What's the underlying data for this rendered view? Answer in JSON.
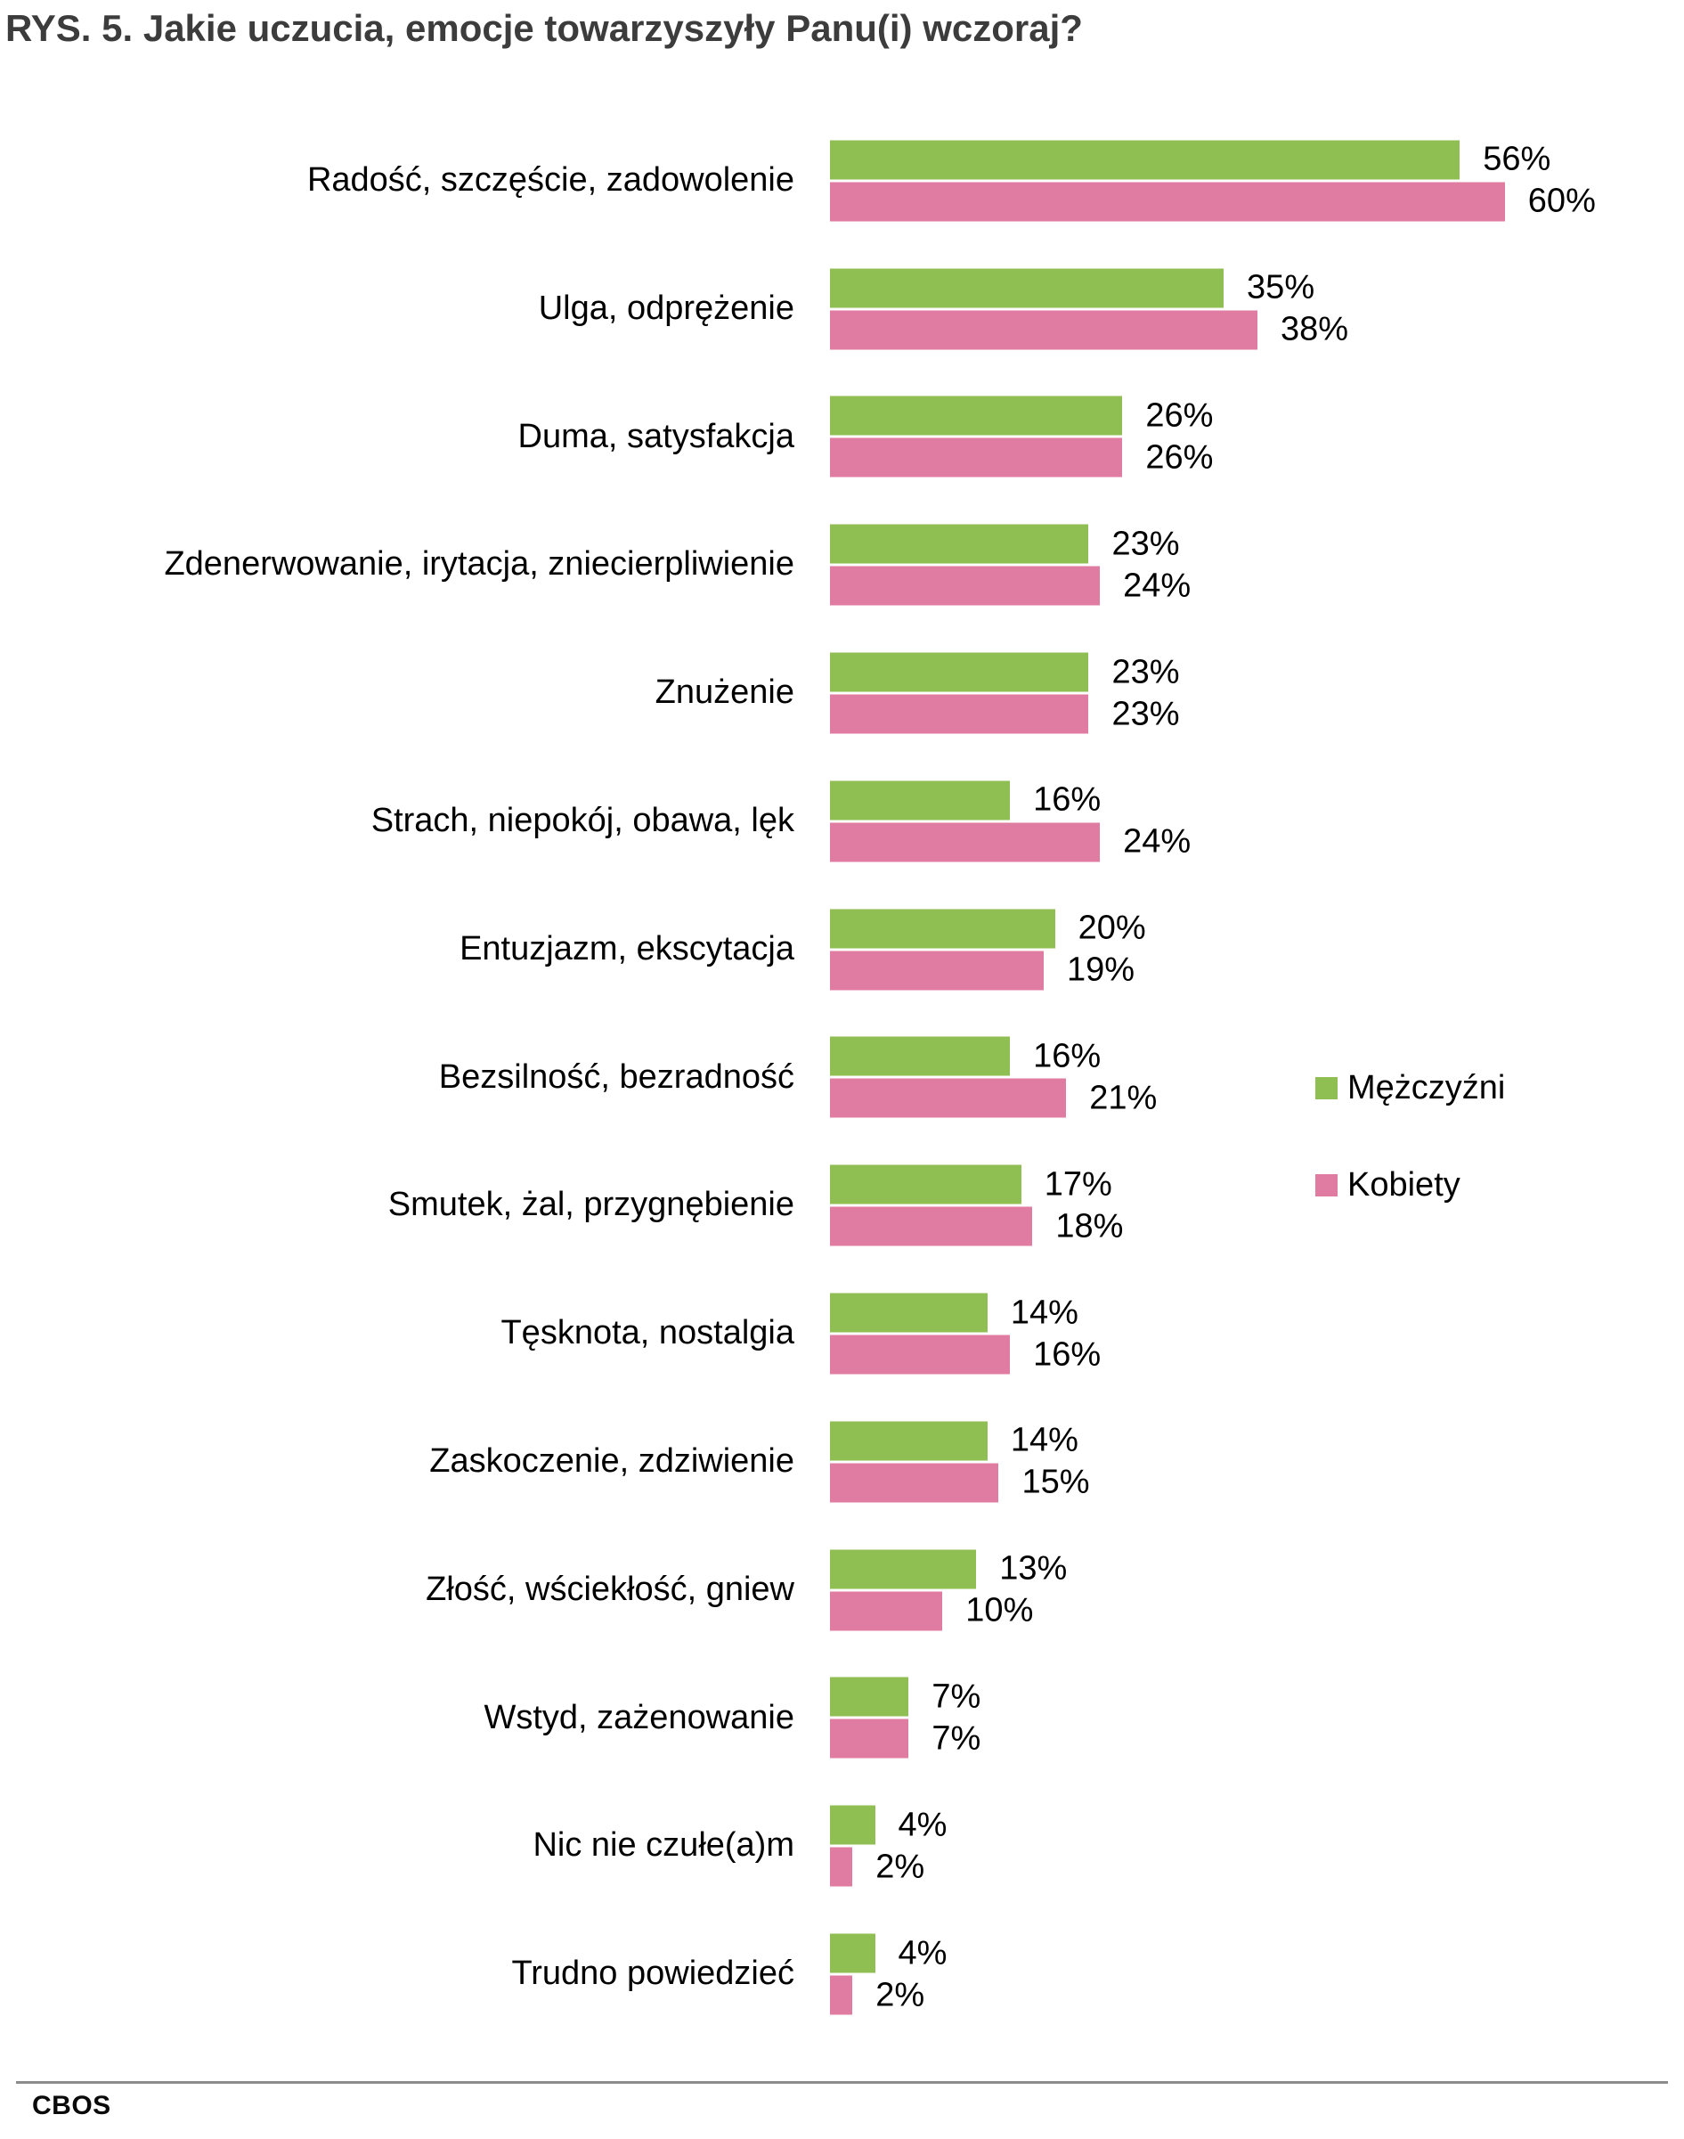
{
  "title": "RYS. 5. Jakie uczucia, emocje towarzyszyły Panu(i) wczoraj?",
  "footer": {
    "brand": "CBOS"
  },
  "colors": {
    "men": "#8FBE53",
    "women": "#E07BA1"
  },
  "chart_data": {
    "type": "bar",
    "orientation": "horizontal",
    "title": "RYS. 5. Jakie uczucia, emocje towarzyszyły Panu(i) wczoraj?",
    "value_suffix": "%",
    "xlim": [
      0,
      60
    ],
    "grid": false,
    "legend_position": "center-right",
    "categories": [
      "Radość, szczęście, zadowolenie",
      "Ulga, odprężenie",
      "Duma, satysfakcja",
      "Zdenerwowanie, irytacja, zniecierpliwienie",
      "Znużenie",
      "Strach, niepokój, obawa, lęk",
      "Entuzjazm, ekscytacja",
      "Bezsilność, bezradność",
      "Smutek, żal, przygnębienie",
      "Tęsknota, nostalgia",
      "Zaskoczenie, zdziwienie",
      "Złość, wściekłość, gniew",
      "Wstyd, zażenowanie",
      "Nic nie czułe(a)m",
      "Trudno powiedzieć"
    ],
    "series": [
      {
        "name": "Mężczyźni",
        "color": "#8FBE53",
        "values": [
          56,
          35,
          26,
          23,
          23,
          16,
          20,
          16,
          17,
          14,
          14,
          13,
          7,
          4,
          4
        ]
      },
      {
        "name": "Kobiety",
        "color": "#E07BA1",
        "values": [
          60,
          38,
          26,
          24,
          23,
          24,
          19,
          21,
          18,
          16,
          15,
          10,
          7,
          2,
          2
        ]
      }
    ]
  }
}
